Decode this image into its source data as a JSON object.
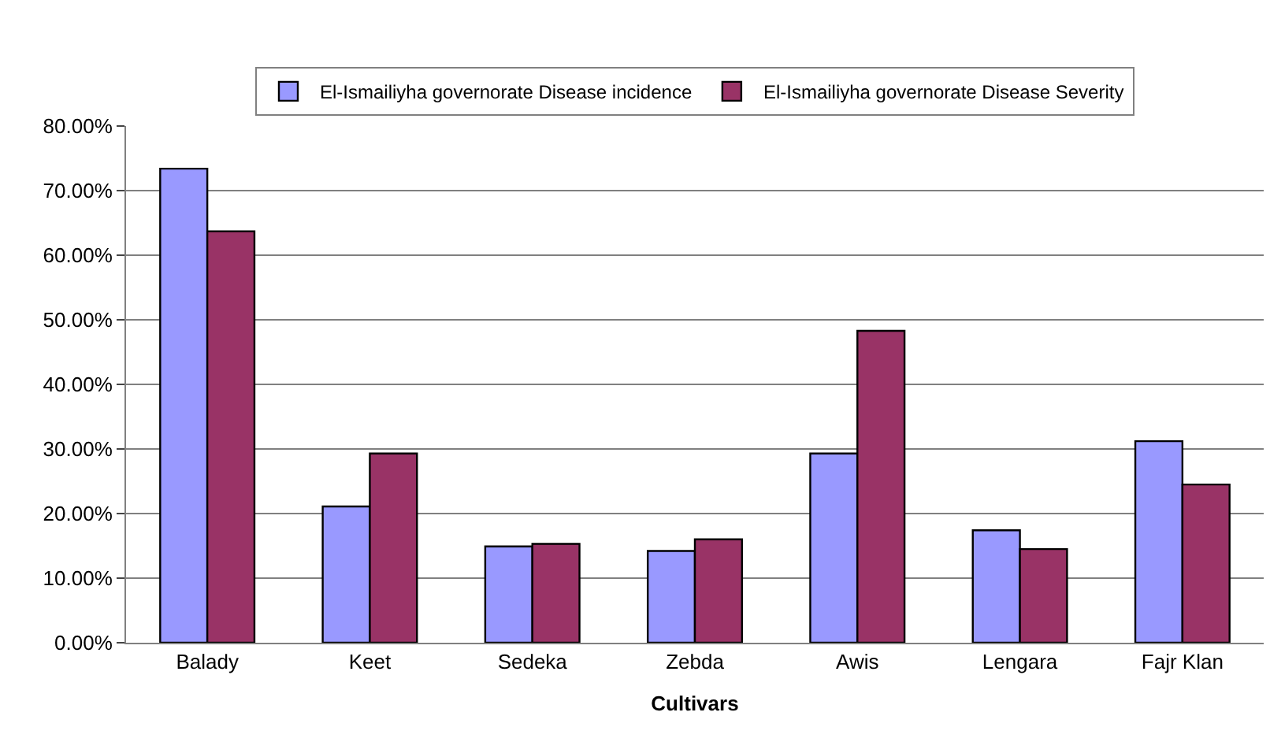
{
  "chart_data": {
    "type": "bar",
    "xlabel": "Cultivars",
    "categories": [
      "Balady",
      "Keet",
      "Sedeka",
      "Zebda",
      "Awis",
      "Lengara",
      "Fajr Klan"
    ],
    "series": [
      {
        "name": "El-Ismailiyha governorate Disease incidence",
        "color": "#9999ff",
        "values": [
          73.4,
          21.1,
          14.9,
          14.2,
          29.3,
          17.4,
          31.2
        ]
      },
      {
        "name": "El-Ismailiyha governorate Disease Severity",
        "color": "#993366",
        "values": [
          63.7,
          29.3,
          15.3,
          16.0,
          48.3,
          14.5,
          24.5
        ]
      }
    ],
    "ylim": [
      0,
      80
    ],
    "yticks": [
      {
        "value": 0,
        "label": "0.00%"
      },
      {
        "value": 10,
        "label": "10.00%"
      },
      {
        "value": 20,
        "label": "20.00%"
      },
      {
        "value": 30,
        "label": "30.00%"
      },
      {
        "value": 40,
        "label": "40.00%"
      },
      {
        "value": 50,
        "label": "50.00%"
      },
      {
        "value": 60,
        "label": "60.00%"
      },
      {
        "value": 70,
        "label": "70.00%"
      },
      {
        "value": 80,
        "label": "80.00%"
      }
    ],
    "grid": "y",
    "legend": "top"
  }
}
